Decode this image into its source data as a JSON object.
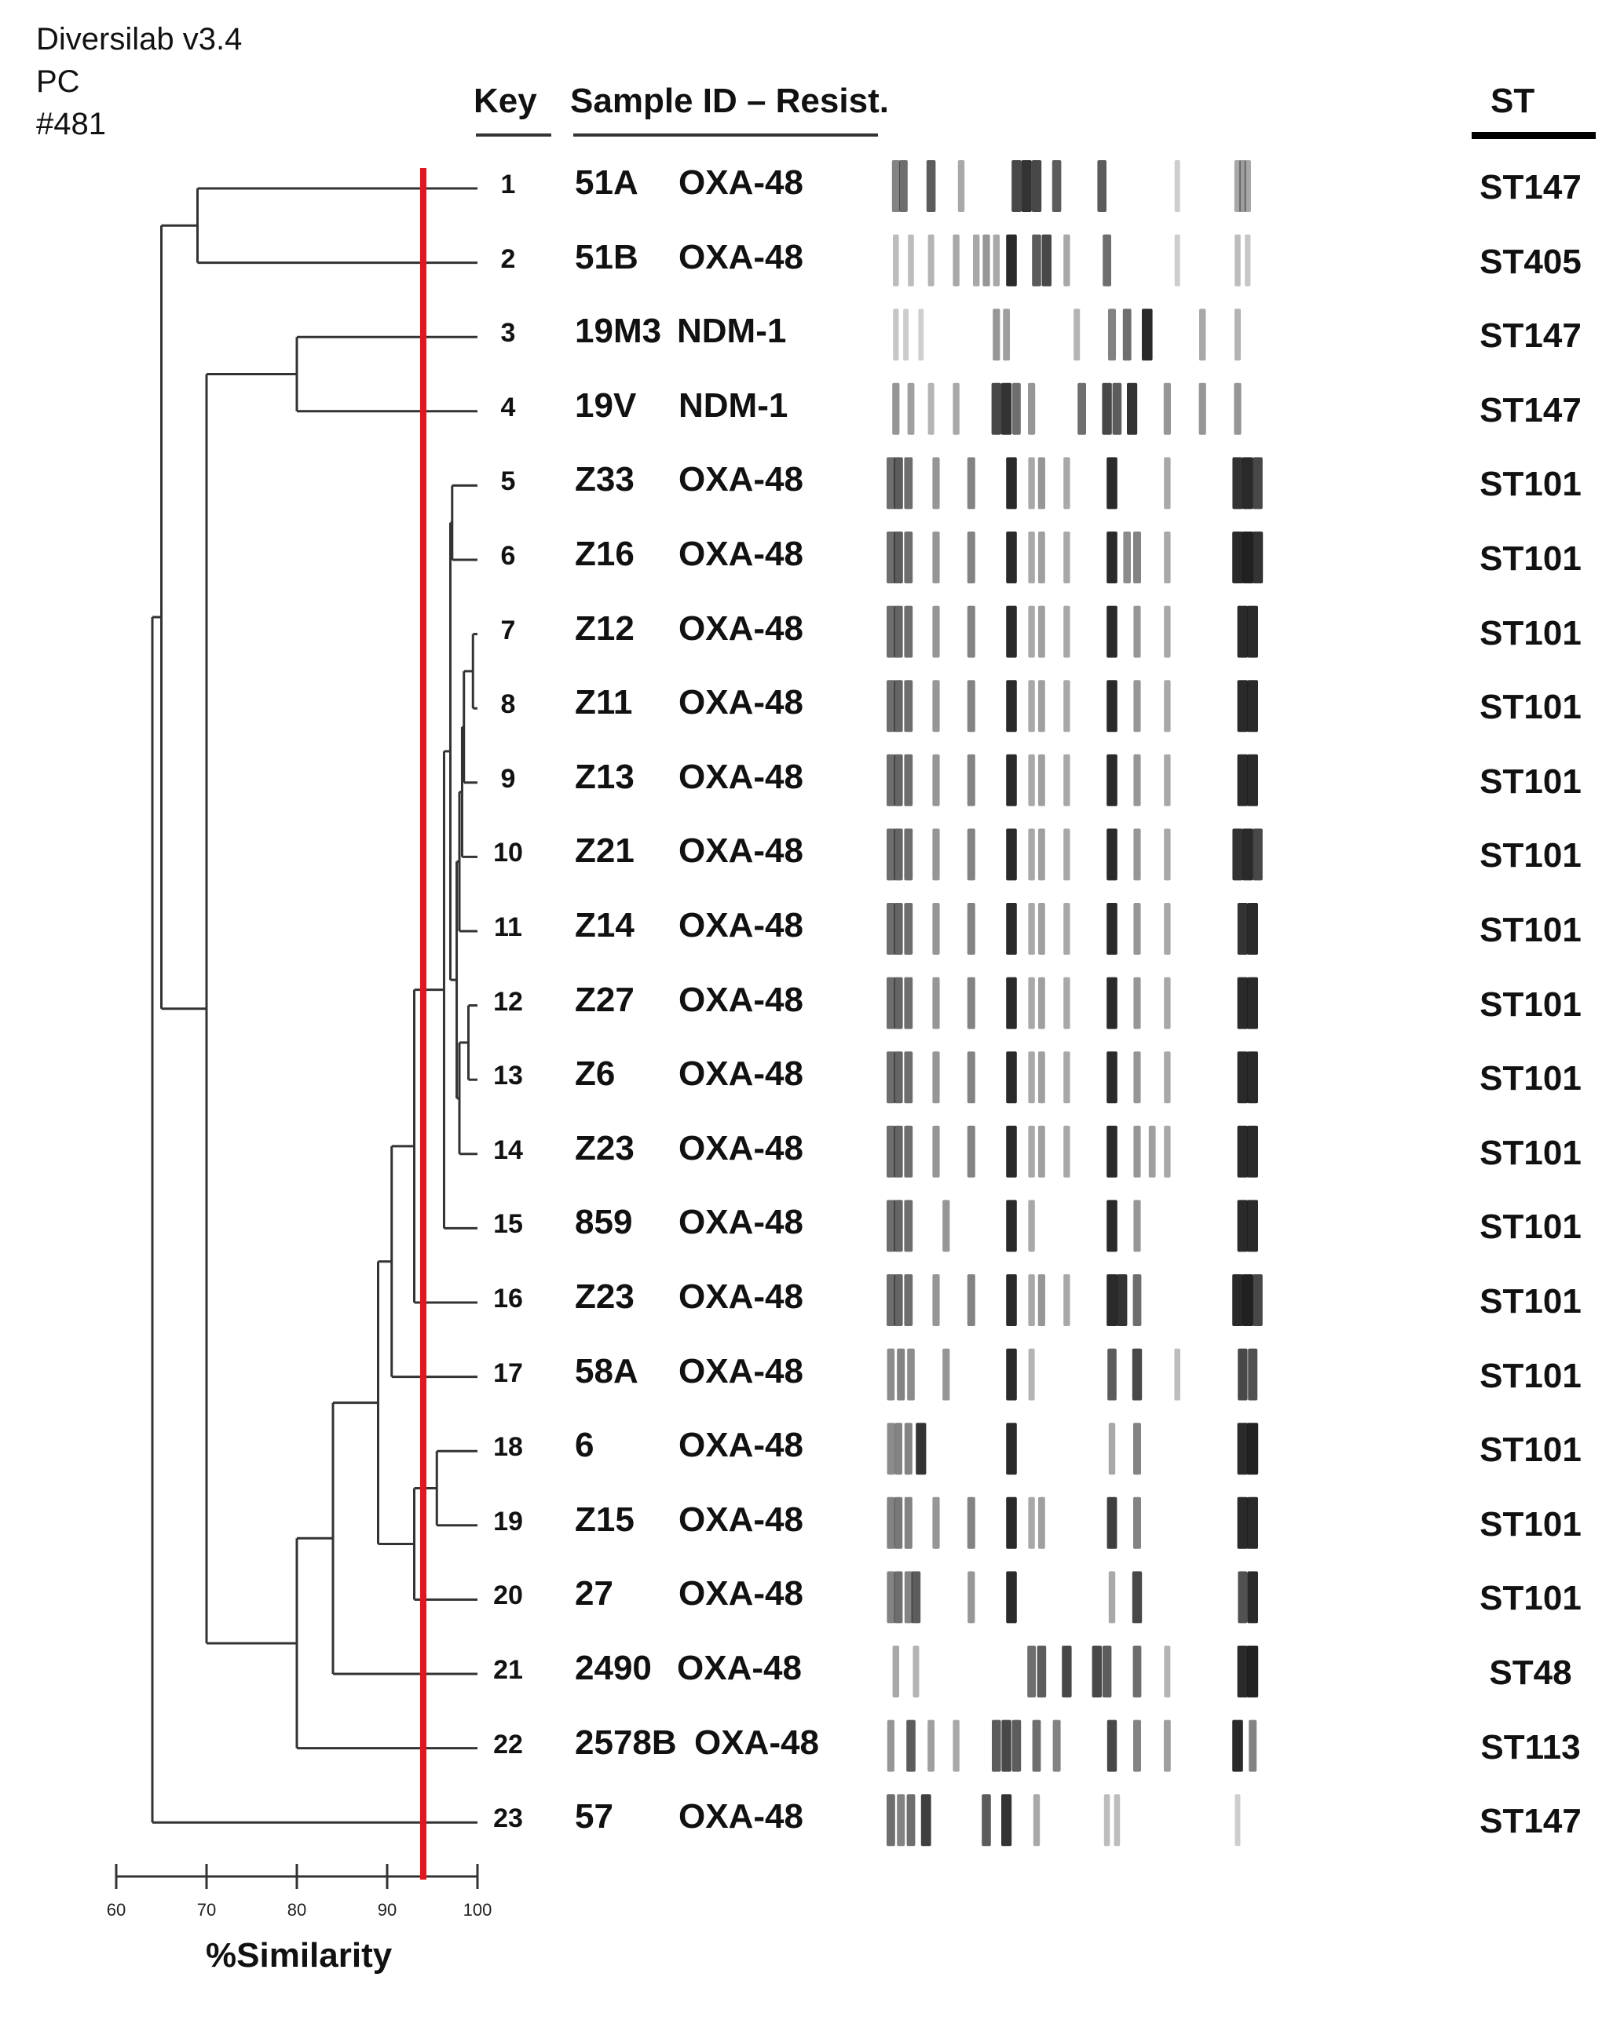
{
  "header": {
    "software": "Diversilab v3.4",
    "method": "PC",
    "run": "#481"
  },
  "columns": {
    "key": "Key",
    "sample": "Sample ID – Resist.",
    "st": "ST"
  },
  "axis": {
    "label": "%Similarity",
    "ticks": [
      60,
      70,
      80,
      90,
      100
    ],
    "cutoff": 94
  },
  "colors": {
    "cutoff_line": "#e8141b",
    "tree": "#333333",
    "band": "#1a1a1a"
  },
  "samples": [
    {
      "key": "1",
      "id": "51A",
      "resist": "OXA-48",
      "st": "ST147"
    },
    {
      "key": "2",
      "id": "51B",
      "resist": "OXA-48",
      "st": "ST405"
    },
    {
      "key": "3",
      "id": "19M3",
      "resist": "NDM-1",
      "st": "ST147"
    },
    {
      "key": "4",
      "id": "19V",
      "resist": "NDM-1",
      "st": "ST147"
    },
    {
      "key": "5",
      "id": "Z33",
      "resist": "OXA-48",
      "st": "ST101"
    },
    {
      "key": "6",
      "id": "Z16",
      "resist": "OXA-48",
      "st": "ST101"
    },
    {
      "key": "7",
      "id": "Z12",
      "resist": "OXA-48",
      "st": "ST101"
    },
    {
      "key": "8",
      "id": "Z11",
      "resist": "OXA-48",
      "st": "ST101"
    },
    {
      "key": "9",
      "id": "Z13",
      "resist": "OXA-48",
      "st": "ST101"
    },
    {
      "key": "10",
      "id": "Z21",
      "resist": "OXA-48",
      "st": "ST101"
    },
    {
      "key": "11",
      "id": "Z14",
      "resist": "OXA-48",
      "st": "ST101"
    },
    {
      "key": "12",
      "id": "Z27",
      "resist": "OXA-48",
      "st": "ST101"
    },
    {
      "key": "13",
      "id": "Z6",
      "resist": "OXA-48",
      "st": "ST101"
    },
    {
      "key": "14",
      "id": "Z23",
      "resist": "OXA-48",
      "st": "ST101"
    },
    {
      "key": "15",
      "id": "859",
      "resist": "OXA-48",
      "st": "ST101"
    },
    {
      "key": "16",
      "id": "Z23",
      "resist": "OXA-48",
      "st": "ST101"
    },
    {
      "key": "17",
      "id": "58A",
      "resist": "OXA-48",
      "st": "ST101"
    },
    {
      "key": "18",
      "id": "6",
      "resist": "OXA-48",
      "st": "ST101"
    },
    {
      "key": "19",
      "id": "Z15",
      "resist": "OXA-48",
      "st": "ST101"
    },
    {
      "key": "20",
      "id": "27",
      "resist": "OXA-48",
      "st": "ST101"
    },
    {
      "key": "21",
      "id": "2490",
      "resist": "OXA-48",
      "st": "ST48"
    },
    {
      "key": "22",
      "id": "2578B",
      "resist": "OXA-48",
      "st": "ST113"
    },
    {
      "key": "23",
      "id": "57",
      "resist": "OXA-48",
      "st": "ST147"
    }
  ],
  "dendrogram": {
    "merges": [
      {
        "a": 7,
        "b": 8,
        "sim": 99.5
      },
      {
        "a": 12,
        "b": 13,
        "sim": 99
      },
      {
        "a": "m1",
        "b": 9,
        "sim": 98.5
      },
      {
        "a": "m3",
        "b": 10,
        "sim": 98.3
      },
      {
        "a": "m4",
        "b": 11,
        "sim": 98
      },
      {
        "a": "m2",
        "b": 14,
        "sim": 98
      },
      {
        "a": "m5",
        "b": "m6",
        "sim": 97.7
      },
      {
        "a": 5,
        "b": 6,
        "sim": 97.2
      },
      {
        "a": "m8",
        "b": "m7",
        "sim": 97
      },
      {
        "a": "m9",
        "b": 15,
        "sim": 96.3
      },
      {
        "a": 18,
        "b": 19,
        "sim": 95.5
      },
      {
        "a": "m10",
        "b": 16,
        "sim": 93
      },
      {
        "a": "m11",
        "b": 20,
        "sim": 93
      },
      {
        "a": "m12",
        "b": 17,
        "sim": 90.5
      },
      {
        "a": "m14",
        "b": "m13",
        "sim": 89
      },
      {
        "a": "m15",
        "b": 21,
        "sim": 84
      },
      {
        "a": "m16",
        "b": 22,
        "sim": 80
      },
      {
        "a": 3,
        "b": 4,
        "sim": 80
      },
      {
        "a": "m18",
        "b": "m17",
        "sim": 70
      },
      {
        "a": 1,
        "b": 2,
        "sim": 69
      },
      {
        "a": "m20",
        "b": "m19",
        "sim": 65
      },
      {
        "a": "m21",
        "b": 23,
        "sim": 64
      }
    ]
  },
  "band_patterns": [
    [
      [
        0.02,
        0.5
      ],
      [
        0.035,
        0.6
      ],
      [
        0.09,
        0.7
      ],
      [
        0.15,
        0.3
      ],
      [
        0.26,
        0.8
      ],
      [
        0.28,
        0.9
      ],
      [
        0.3,
        0.8
      ],
      [
        0.34,
        0.7
      ],
      [
        0.43,
        0.7
      ],
      [
        0.58,
        0.12
      ],
      [
        0.7,
        0.3
      ],
      [
        0.71,
        0.35
      ],
      [
        0.72,
        0.3
      ]
    ],
    [
      [
        0.02,
        0.2
      ],
      [
        0.05,
        0.2
      ],
      [
        0.09,
        0.25
      ],
      [
        0.14,
        0.3
      ],
      [
        0.18,
        0.3
      ],
      [
        0.2,
        0.4
      ],
      [
        0.22,
        0.3
      ],
      [
        0.25,
        0.95
      ],
      [
        0.3,
        0.7
      ],
      [
        0.32,
        0.8
      ],
      [
        0.36,
        0.3
      ],
      [
        0.44,
        0.6
      ],
      [
        0.58,
        0.12
      ],
      [
        0.7,
        0.2
      ],
      [
        0.72,
        0.15
      ]
    ],
    [
      [
        0.02,
        0.15
      ],
      [
        0.04,
        0.12
      ],
      [
        0.07,
        0.1
      ],
      [
        0.22,
        0.4
      ],
      [
        0.24,
        0.35
      ],
      [
        0.38,
        0.25
      ],
      [
        0.45,
        0.5
      ],
      [
        0.48,
        0.6
      ],
      [
        0.52,
        0.95
      ],
      [
        0.63,
        0.3
      ],
      [
        0.7,
        0.25
      ]
    ],
    [
      [
        0.02,
        0.4
      ],
      [
        0.05,
        0.35
      ],
      [
        0.09,
        0.25
      ],
      [
        0.14,
        0.3
      ],
      [
        0.22,
        0.8
      ],
      [
        0.24,
        0.9
      ],
      [
        0.26,
        0.6
      ],
      [
        0.29,
        0.4
      ],
      [
        0.39,
        0.6
      ],
      [
        0.44,
        0.8
      ],
      [
        0.46,
        0.7
      ],
      [
        0.49,
        0.9
      ],
      [
        0.56,
        0.4
      ],
      [
        0.63,
        0.4
      ],
      [
        0.7,
        0.4
      ]
    ],
    [
      [
        0.01,
        0.6
      ],
      [
        0.025,
        0.7
      ],
      [
        0.045,
        0.6
      ],
      [
        0.1,
        0.4
      ],
      [
        0.17,
        0.5
      ],
      [
        0.25,
        0.95
      ],
      [
        0.29,
        0.3
      ],
      [
        0.31,
        0.4
      ],
      [
        0.36,
        0.3
      ],
      [
        0.45,
        0.95
      ],
      [
        0.56,
        0.3
      ],
      [
        0.7,
        0.9
      ],
      [
        0.72,
        0.95
      ],
      [
        0.74,
        0.8
      ]
    ],
    [
      [
        0.01,
        0.6
      ],
      [
        0.025,
        0.7
      ],
      [
        0.045,
        0.6
      ],
      [
        0.1,
        0.4
      ],
      [
        0.17,
        0.5
      ],
      [
        0.25,
        0.95
      ],
      [
        0.29,
        0.3
      ],
      [
        0.31,
        0.35
      ],
      [
        0.36,
        0.3
      ],
      [
        0.45,
        0.95
      ],
      [
        0.48,
        0.45
      ],
      [
        0.5,
        0.5
      ],
      [
        0.56,
        0.3
      ],
      [
        0.7,
        0.95
      ],
      [
        0.72,
        1.0
      ],
      [
        0.74,
        0.9
      ]
    ],
    [
      [
        0.01,
        0.6
      ],
      [
        0.025,
        0.65
      ],
      [
        0.045,
        0.6
      ],
      [
        0.1,
        0.4
      ],
      [
        0.17,
        0.5
      ],
      [
        0.25,
        0.95
      ],
      [
        0.29,
        0.3
      ],
      [
        0.31,
        0.35
      ],
      [
        0.36,
        0.3
      ],
      [
        0.45,
        0.95
      ],
      [
        0.5,
        0.4
      ],
      [
        0.56,
        0.3
      ],
      [
        0.71,
        0.95
      ],
      [
        0.73,
        0.95
      ]
    ],
    [
      [
        0.01,
        0.6
      ],
      [
        0.025,
        0.65
      ],
      [
        0.045,
        0.6
      ],
      [
        0.1,
        0.4
      ],
      [
        0.17,
        0.5
      ],
      [
        0.25,
        0.95
      ],
      [
        0.29,
        0.3
      ],
      [
        0.31,
        0.35
      ],
      [
        0.36,
        0.3
      ],
      [
        0.45,
        0.95
      ],
      [
        0.5,
        0.4
      ],
      [
        0.56,
        0.3
      ],
      [
        0.71,
        0.95
      ],
      [
        0.73,
        0.95
      ]
    ],
    [
      [
        0.01,
        0.6
      ],
      [
        0.025,
        0.65
      ],
      [
        0.045,
        0.6
      ],
      [
        0.1,
        0.4
      ],
      [
        0.17,
        0.5
      ],
      [
        0.25,
        0.95
      ],
      [
        0.29,
        0.3
      ],
      [
        0.31,
        0.35
      ],
      [
        0.36,
        0.3
      ],
      [
        0.45,
        0.95
      ],
      [
        0.5,
        0.4
      ],
      [
        0.56,
        0.3
      ],
      [
        0.71,
        0.95
      ],
      [
        0.73,
        0.95
      ]
    ],
    [
      [
        0.01,
        0.6
      ],
      [
        0.025,
        0.65
      ],
      [
        0.045,
        0.6
      ],
      [
        0.1,
        0.4
      ],
      [
        0.17,
        0.5
      ],
      [
        0.25,
        0.95
      ],
      [
        0.29,
        0.3
      ],
      [
        0.31,
        0.35
      ],
      [
        0.36,
        0.3
      ],
      [
        0.45,
        0.95
      ],
      [
        0.5,
        0.4
      ],
      [
        0.56,
        0.3
      ],
      [
        0.7,
        0.9
      ],
      [
        0.72,
        0.95
      ],
      [
        0.74,
        0.8
      ]
    ],
    [
      [
        0.01,
        0.6
      ],
      [
        0.025,
        0.65
      ],
      [
        0.045,
        0.6
      ],
      [
        0.1,
        0.4
      ],
      [
        0.17,
        0.5
      ],
      [
        0.25,
        0.95
      ],
      [
        0.29,
        0.3
      ],
      [
        0.31,
        0.35
      ],
      [
        0.36,
        0.3
      ],
      [
        0.45,
        0.95
      ],
      [
        0.5,
        0.4
      ],
      [
        0.56,
        0.3
      ],
      [
        0.71,
        0.9
      ],
      [
        0.73,
        0.95
      ]
    ],
    [
      [
        0.01,
        0.6
      ],
      [
        0.025,
        0.65
      ],
      [
        0.045,
        0.6
      ],
      [
        0.1,
        0.4
      ],
      [
        0.17,
        0.5
      ],
      [
        0.25,
        0.95
      ],
      [
        0.29,
        0.3
      ],
      [
        0.31,
        0.35
      ],
      [
        0.36,
        0.3
      ],
      [
        0.45,
        0.95
      ],
      [
        0.5,
        0.4
      ],
      [
        0.56,
        0.3
      ],
      [
        0.71,
        0.95
      ],
      [
        0.73,
        0.95
      ]
    ],
    [
      [
        0.01,
        0.6
      ],
      [
        0.025,
        0.65
      ],
      [
        0.045,
        0.6
      ],
      [
        0.1,
        0.4
      ],
      [
        0.17,
        0.5
      ],
      [
        0.25,
        0.95
      ],
      [
        0.29,
        0.3
      ],
      [
        0.31,
        0.35
      ],
      [
        0.36,
        0.3
      ],
      [
        0.45,
        0.95
      ],
      [
        0.5,
        0.4
      ],
      [
        0.56,
        0.3
      ],
      [
        0.71,
        0.95
      ],
      [
        0.73,
        0.95
      ]
    ],
    [
      [
        0.01,
        0.6
      ],
      [
        0.025,
        0.65
      ],
      [
        0.045,
        0.6
      ],
      [
        0.1,
        0.4
      ],
      [
        0.17,
        0.5
      ],
      [
        0.25,
        0.95
      ],
      [
        0.29,
        0.3
      ],
      [
        0.31,
        0.35
      ],
      [
        0.36,
        0.3
      ],
      [
        0.45,
        0.95
      ],
      [
        0.5,
        0.4
      ],
      [
        0.53,
        0.35
      ],
      [
        0.56,
        0.3
      ],
      [
        0.71,
        0.95
      ],
      [
        0.73,
        0.95
      ]
    ],
    [
      [
        0.01,
        0.6
      ],
      [
        0.025,
        0.65
      ],
      [
        0.045,
        0.6
      ],
      [
        0.12,
        0.4
      ],
      [
        0.25,
        0.95
      ],
      [
        0.29,
        0.3
      ],
      [
        0.45,
        0.95
      ],
      [
        0.5,
        0.4
      ],
      [
        0.71,
        0.95
      ],
      [
        0.73,
        0.95
      ]
    ],
    [
      [
        0.01,
        0.6
      ],
      [
        0.025,
        0.65
      ],
      [
        0.045,
        0.6
      ],
      [
        0.1,
        0.4
      ],
      [
        0.17,
        0.5
      ],
      [
        0.25,
        0.95
      ],
      [
        0.29,
        0.3
      ],
      [
        0.31,
        0.4
      ],
      [
        0.36,
        0.3
      ],
      [
        0.45,
        0.95
      ],
      [
        0.47,
        0.9
      ],
      [
        0.5,
        0.6
      ],
      [
        0.7,
        0.95
      ],
      [
        0.72,
        1.0
      ],
      [
        0.74,
        0.8
      ]
    ],
    [
      [
        0.01,
        0.45
      ],
      [
        0.03,
        0.5
      ],
      [
        0.05,
        0.45
      ],
      [
        0.12,
        0.4
      ],
      [
        0.25,
        0.95
      ],
      [
        0.29,
        0.25
      ],
      [
        0.45,
        0.7
      ],
      [
        0.5,
        0.8
      ],
      [
        0.58,
        0.2
      ],
      [
        0.71,
        0.8
      ],
      [
        0.73,
        0.75
      ]
    ],
    [
      [
        0.01,
        0.45
      ],
      [
        0.025,
        0.5
      ],
      [
        0.045,
        0.5
      ],
      [
        0.07,
        0.9
      ],
      [
        0.25,
        0.95
      ],
      [
        0.45,
        0.3
      ],
      [
        0.5,
        0.5
      ],
      [
        0.71,
        0.95
      ],
      [
        0.73,
        1.0
      ]
    ],
    [
      [
        0.01,
        0.5
      ],
      [
        0.025,
        0.55
      ],
      [
        0.045,
        0.5
      ],
      [
        0.1,
        0.4
      ],
      [
        0.17,
        0.5
      ],
      [
        0.25,
        0.95
      ],
      [
        0.29,
        0.3
      ],
      [
        0.31,
        0.35
      ],
      [
        0.45,
        0.85
      ],
      [
        0.5,
        0.5
      ],
      [
        0.71,
        0.95
      ],
      [
        0.73,
        0.95
      ]
    ],
    [
      [
        0.01,
        0.5
      ],
      [
        0.025,
        0.6
      ],
      [
        0.045,
        0.5
      ],
      [
        0.06,
        0.7
      ],
      [
        0.17,
        0.4
      ],
      [
        0.25,
        0.95
      ],
      [
        0.45,
        0.3
      ],
      [
        0.5,
        0.8
      ],
      [
        0.71,
        0.75
      ],
      [
        0.73,
        0.95
      ]
    ],
    [
      [
        0.02,
        0.3
      ],
      [
        0.06,
        0.25
      ],
      [
        0.29,
        0.6
      ],
      [
        0.31,
        0.7
      ],
      [
        0.36,
        0.8
      ],
      [
        0.42,
        0.8
      ],
      [
        0.44,
        0.7
      ],
      [
        0.5,
        0.6
      ],
      [
        0.56,
        0.25
      ],
      [
        0.71,
        0.95
      ],
      [
        0.73,
        1.0
      ]
    ],
    [
      [
        0.01,
        0.4
      ],
      [
        0.05,
        0.7
      ],
      [
        0.09,
        0.35
      ],
      [
        0.14,
        0.3
      ],
      [
        0.22,
        0.7
      ],
      [
        0.24,
        0.8
      ],
      [
        0.26,
        0.7
      ],
      [
        0.3,
        0.6
      ],
      [
        0.34,
        0.5
      ],
      [
        0.45,
        0.8
      ],
      [
        0.5,
        0.5
      ],
      [
        0.56,
        0.35
      ],
      [
        0.7,
        0.95
      ],
      [
        0.73,
        0.5
      ]
    ],
    [
      [
        0.01,
        0.6
      ],
      [
        0.03,
        0.5
      ],
      [
        0.05,
        0.6
      ],
      [
        0.08,
        0.85
      ],
      [
        0.2,
        0.7
      ],
      [
        0.24,
        0.9
      ],
      [
        0.3,
        0.3
      ],
      [
        0.44,
        0.2
      ],
      [
        0.46,
        0.2
      ],
      [
        0.7,
        0.12
      ]
    ]
  ]
}
